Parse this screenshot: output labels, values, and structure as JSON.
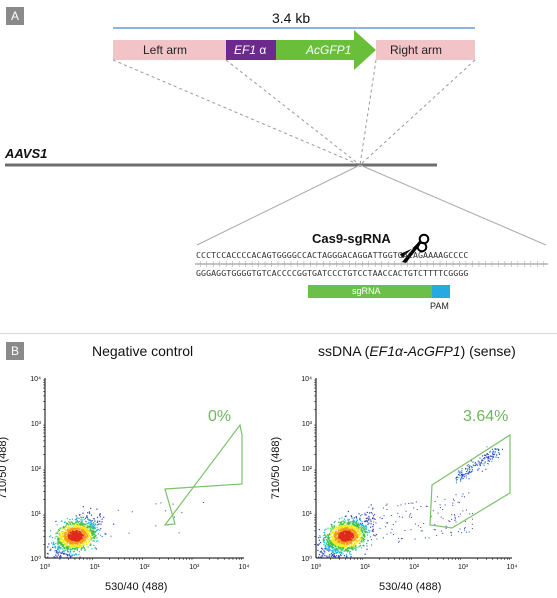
{
  "panelA": {
    "tag": "A",
    "size_label": "3.4 kb",
    "construct": {
      "left_arm": "Left arm",
      "promoter_prefix": "EF1 ",
      "promoter_alpha": "α",
      "gene": "AcGFP1",
      "right_arm": "Right arm"
    },
    "locus": "AAVS1",
    "cas9_label": "Cas9-sgRNA",
    "seq_top": "CCCTCCACCCCACAGTGGGGCCACTAGGGACAGGATTGGTGACAGAAAAGCCCC",
    "seq_bottom": "GGGAGGTGGGGTGTCACCCCGGTGATCCCTGTCCTAACCACTGTCTTTTCGGGG",
    "sgrna_label": "sgRNA",
    "pam_label": "PAM"
  },
  "panelB": {
    "tag": "B",
    "plots": [
      {
        "title": "Negative control",
        "title_italic": "",
        "title_suffix": "",
        "gate_pct": "0%",
        "xlabel": "530/40 (488)",
        "ylabel": "710/50 (488)"
      },
      {
        "title": "ssDNA (",
        "title_italic": "EF1α-AcGFP1",
        "title_suffix": ") (sense)",
        "gate_pct": "3.64%",
        "xlabel": "530/40 (488)",
        "ylabel": "710/50 (488)"
      }
    ],
    "ticks": [
      "10⁰",
      "10¹",
      "10²",
      "10³",
      "10⁴"
    ]
  },
  "colors": {
    "arm": "#f2c4c8",
    "ef1a": "#6b2a8c",
    "gfp": "#6abf3a",
    "gate": "#7bc26a",
    "sgrna": "#6cc04a",
    "pam": "#27a9e1",
    "locus_line": "#6d6d6d",
    "bracket": "#8fb3e0"
  }
}
